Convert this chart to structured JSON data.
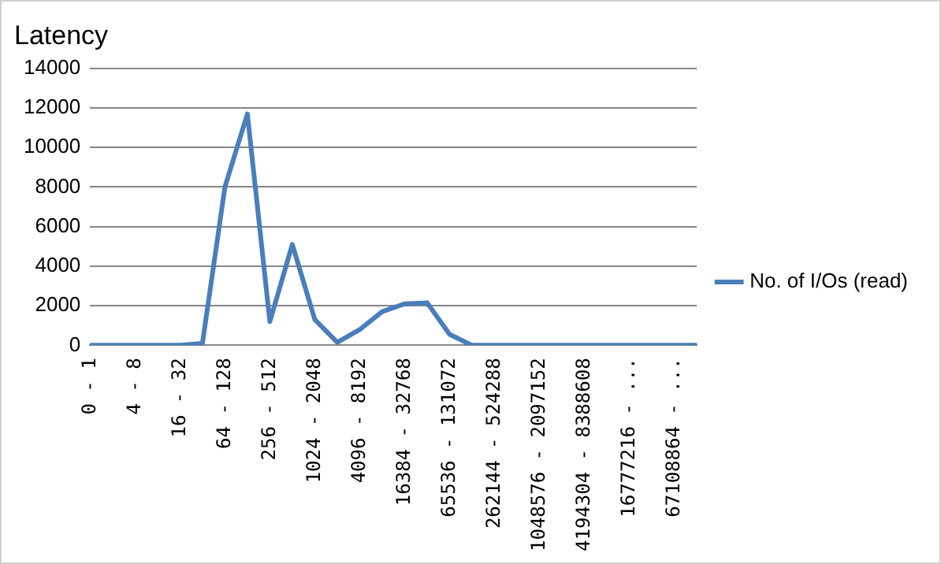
{
  "chart_data": {
    "type": "line",
    "title": "Latency",
    "categories": [
      "0 - 1",
      null,
      "4 - 8",
      null,
      "16 - 32",
      null,
      "64 - 128",
      null,
      "256 - 512",
      null,
      "1024 - 2048",
      null,
      "4096 - 8192",
      null,
      "16384 - 32768",
      null,
      "65536 - 131072",
      null,
      "262144 - 524288",
      null,
      "1048576 - 2097152",
      null,
      "4194304 - 8388608",
      null,
      "16777216 - ...",
      null,
      "67108864 - ...",
      null
    ],
    "series": [
      {
        "name": "No. of I/Os (read)",
        "color": "#4a7ebb",
        "values": [
          0,
          0,
          0,
          0,
          0,
          100,
          8000,
          11700,
          1200,
          5100,
          1300,
          150,
          800,
          1700,
          2100,
          2150,
          550,
          0,
          0,
          0,
          0,
          0,
          0,
          0,
          0,
          0,
          0,
          0
        ]
      }
    ],
    "ylim": [
      0,
      14000
    ],
    "yticks": [
      0,
      2000,
      4000,
      6000,
      8000,
      10000,
      12000,
      14000
    ],
    "grid": "y",
    "legend": "right",
    "marker": "none",
    "line_style": "solid"
  }
}
